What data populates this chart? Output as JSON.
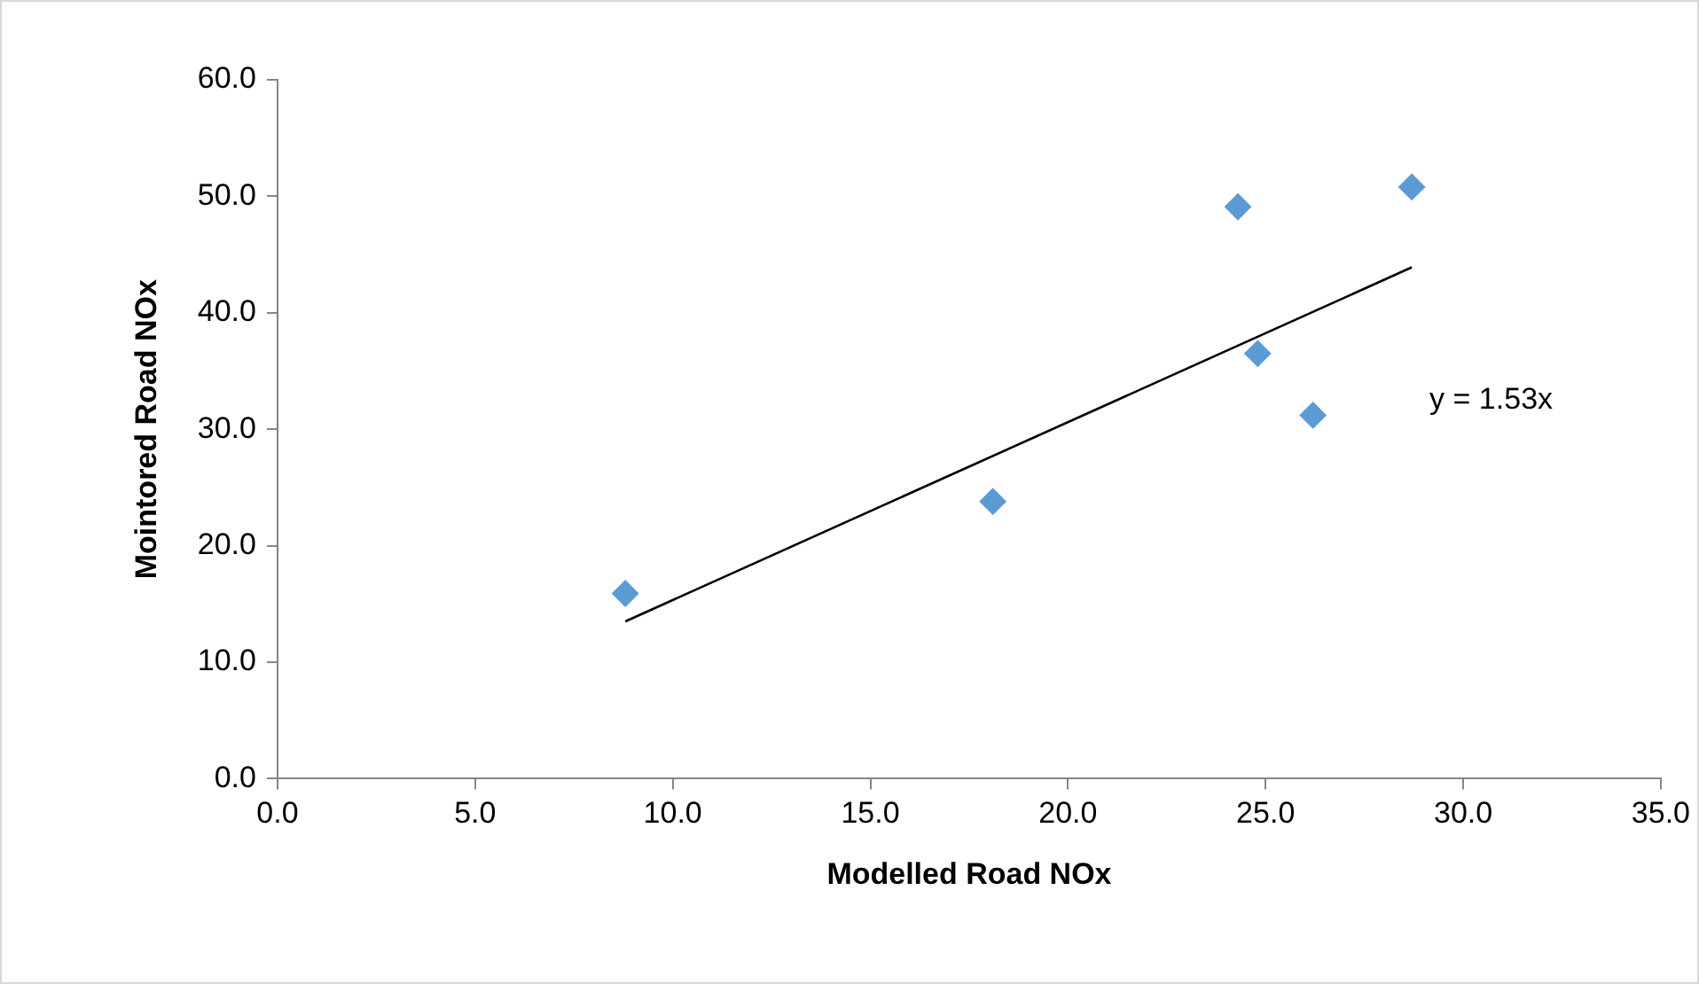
{
  "chart_data": {
    "type": "scatter",
    "xlabel": "Modelled Road NOx",
    "ylabel": "Mointored Road NOx",
    "xlim": [
      0,
      35
    ],
    "xticks": [
      {
        "value": 0,
        "label": "0.0"
      },
      {
        "value": 5,
        "label": "5.0"
      },
      {
        "value": 10,
        "label": "10.0"
      },
      {
        "value": 15,
        "label": "15.0"
      },
      {
        "value": 20,
        "label": "20.0"
      },
      {
        "value": 25,
        "label": "25.0"
      },
      {
        "value": 30,
        "label": "30.0"
      },
      {
        "value": 35,
        "label": "35.0"
      }
    ],
    "ylim": [
      0,
      60
    ],
    "yticks": [
      {
        "value": 0,
        "label": "0.0"
      },
      {
        "value": 10,
        "label": "10.0"
      },
      {
        "value": 20,
        "label": "20.0"
      },
      {
        "value": 30,
        "label": "30.0"
      },
      {
        "value": 40,
        "label": "40.0"
      },
      {
        "value": 50,
        "label": "50.0"
      },
      {
        "value": 60,
        "label": "60.0"
      }
    ],
    "grid": false,
    "legend": false,
    "marker": "diamond",
    "series": [
      {
        "color": "#5b9bd5",
        "x": [
          8.8,
          18.1,
          24.3,
          24.8,
          26.2,
          28.7
        ],
        "values": [
          15.9,
          23.8,
          49.1,
          36.5,
          31.2,
          50.8
        ]
      },
      {
        "type": "line",
        "color": "#000000",
        "marker": "none",
        "x": [
          8.8,
          28.7
        ],
        "values": [
          13.5,
          43.9
        ]
      }
    ],
    "annotations": [
      "y = 1.53x"
    ]
  }
}
